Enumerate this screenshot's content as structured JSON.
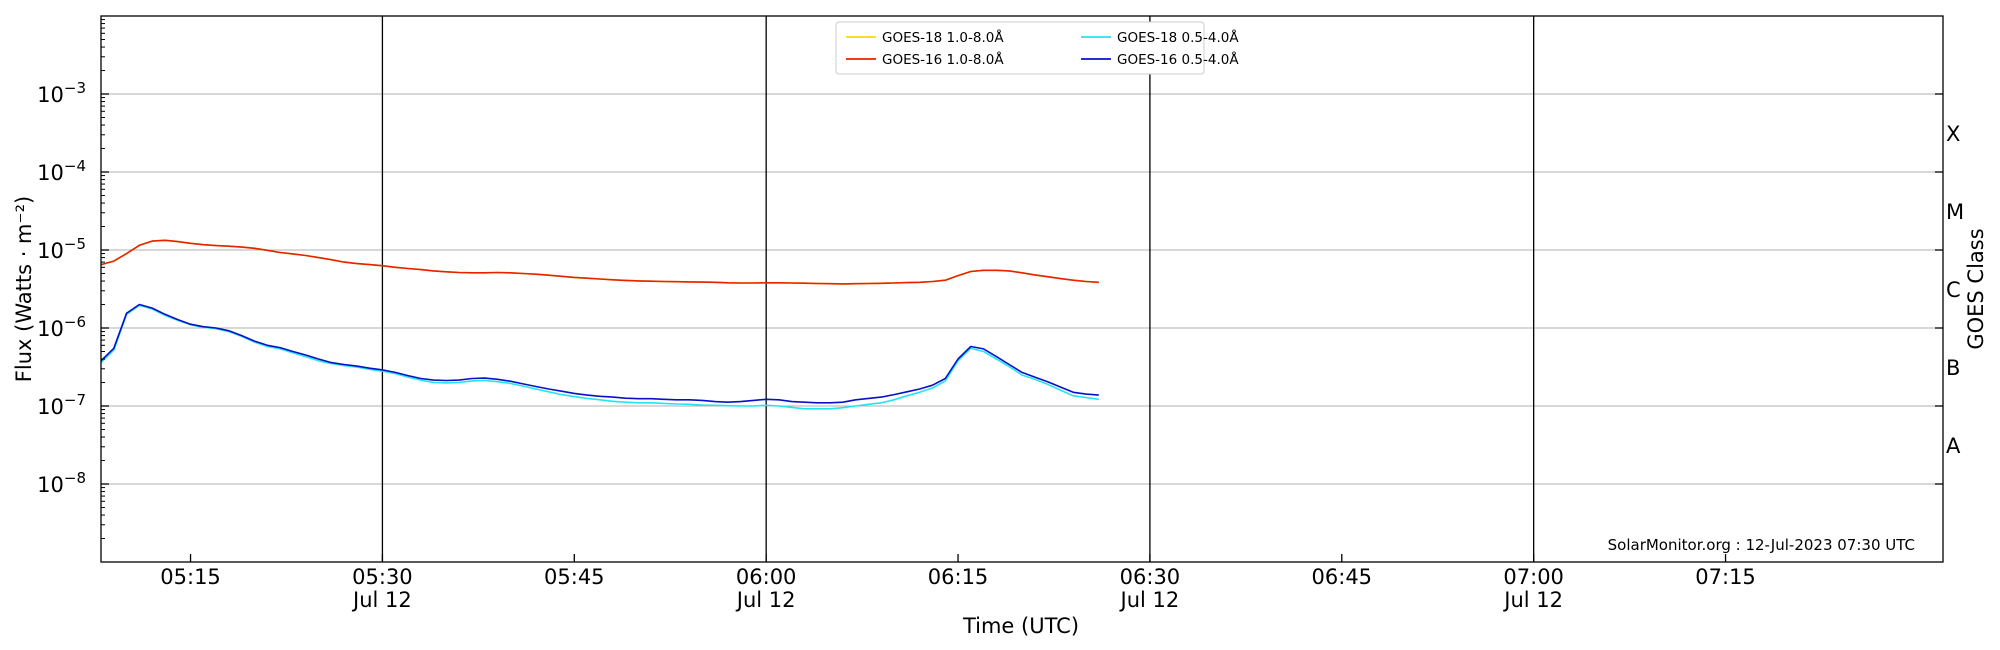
{
  "chart_data": {
    "type": "line",
    "title": "",
    "xlabel": "Time (UTC)",
    "ylabel": "Flux (Watts · m⁻²)",
    "right_axis_label": "GOES Class",
    "y_scale": "log",
    "ylim": [
      1e-09,
      0.01
    ],
    "xlim_minutes": [
      308,
      452
    ],
    "grid": "horizontal at decades",
    "legend_placement": "top-center",
    "x_ticks": [
      {
        "minute": 315,
        "time": "05:15",
        "date": ""
      },
      {
        "minute": 330,
        "time": "05:30",
        "date": "Jul 12"
      },
      {
        "minute": 345,
        "time": "05:45",
        "date": ""
      },
      {
        "minute": 360,
        "time": "06:00",
        "date": "Jul 12"
      },
      {
        "minute": 375,
        "time": "06:15",
        "date": ""
      },
      {
        "minute": 390,
        "time": "06:30",
        "date": "Jul 12"
      },
      {
        "minute": 405,
        "time": "06:45",
        "date": ""
      },
      {
        "minute": 420,
        "time": "07:00",
        "date": "Jul 12"
      },
      {
        "minute": 435,
        "time": "07:15",
        "date": ""
      }
    ],
    "day_lines_minutes": [
      330,
      360,
      390,
      420
    ],
    "y_ticks": [
      {
        "exp": -3,
        "base": "10",
        "sup": "−3"
      },
      {
        "exp": -4,
        "base": "10",
        "sup": "−4"
      },
      {
        "exp": -5,
        "base": "10",
        "sup": "−5"
      },
      {
        "exp": -6,
        "base": "10",
        "sup": "−6"
      },
      {
        "exp": -7,
        "base": "10",
        "sup": "−7"
      },
      {
        "exp": -8,
        "base": "10",
        "sup": "−8"
      }
    ],
    "goes_classes": [
      {
        "label": "X",
        "exp": -3.5
      },
      {
        "label": "M",
        "exp": -4.5
      },
      {
        "label": "C",
        "exp": -5.5
      },
      {
        "label": "B",
        "exp": -6.5
      },
      {
        "label": "A",
        "exp": -7.5
      }
    ],
    "annotation": "SolarMonitor.org : 12-Jul-2023 07:30 UTC",
    "x_times": [
      "05:08",
      "05:09",
      "05:10",
      "05:11",
      "05:12",
      "05:13",
      "05:14",
      "05:15",
      "05:16",
      "05:17",
      "05:18",
      "05:19",
      "05:20",
      "05:21",
      "05:22",
      "05:23",
      "05:24",
      "05:25",
      "05:26",
      "05:27",
      "05:28",
      "05:29",
      "05:30",
      "05:31",
      "05:32",
      "05:33",
      "05:34",
      "05:35",
      "05:36",
      "05:37",
      "05:38",
      "05:39",
      "05:40",
      "05:41",
      "05:42",
      "05:43",
      "05:44",
      "05:45",
      "05:46",
      "05:47",
      "05:48",
      "05:49",
      "05:50",
      "05:51",
      "05:52",
      "05:53",
      "05:54",
      "05:55",
      "05:56",
      "05:57",
      "05:58",
      "05:59",
      "06:00",
      "06:01",
      "06:02",
      "06:03",
      "06:04",
      "06:05",
      "06:06",
      "06:07",
      "06:08",
      "06:09",
      "06:10",
      "06:11",
      "06:12",
      "06:13",
      "06:14",
      "06:15",
      "06:16",
      "06:17",
      "06:18",
      "06:19",
      "06:20",
      "06:21",
      "06:22",
      "06:23",
      "06:24",
      "06:25",
      "06:26"
    ],
    "series": [
      {
        "name": "GOES-18 1.0-8.0Å",
        "color": "#FFD700",
        "values": [
          6.5e-06,
          7.2e-06,
          9e-06,
          1.15e-05,
          1.3e-05,
          1.33e-05,
          1.28e-05,
          1.22e-05,
          1.17e-05,
          1.14e-05,
          1.12e-05,
          1.09e-05,
          1.05e-05,
          9.9e-06,
          9.3e-06,
          8.9e-06,
          8.5e-06,
          8e-06,
          7.5e-06,
          7e-06,
          6.7e-06,
          6.5e-06,
          6.3e-06,
          6e-06,
          5.8e-06,
          5.6e-06,
          5.4e-06,
          5.25e-06,
          5.15e-06,
          5.1e-06,
          5.1e-06,
          5.15e-06,
          5.1e-06,
          5e-06,
          4.9e-06,
          4.75e-06,
          4.6e-06,
          4.45e-06,
          4.35e-06,
          4.25e-06,
          4.15e-06,
          4.08e-06,
          4.02e-06,
          3.98e-06,
          3.95e-06,
          3.92e-06,
          3.9e-06,
          3.88e-06,
          3.85e-06,
          3.8e-06,
          3.78e-06,
          3.78e-06,
          3.8e-06,
          3.8e-06,
          3.78e-06,
          3.75e-06,
          3.72e-06,
          3.7e-06,
          3.68e-06,
          3.7e-06,
          3.72e-06,
          3.74e-06,
          3.78e-06,
          3.82e-06,
          3.85e-06,
          3.95e-06,
          4.1e-06,
          4.7e-06,
          5.3e-06,
          5.5e-06,
          5.5e-06,
          5.4e-06,
          5.1e-06,
          4.8e-06,
          4.55e-06,
          4.3e-06,
          4.1e-06,
          3.95e-06,
          3.85e-06
        ]
      },
      {
        "name": "GOES-16 1.0-8.0Å",
        "color": "#E62200",
        "values": [
          6.5e-06,
          7.2e-06,
          9e-06,
          1.15e-05,
          1.3e-05,
          1.33e-05,
          1.28e-05,
          1.22e-05,
          1.17e-05,
          1.14e-05,
          1.12e-05,
          1.09e-05,
          1.05e-05,
          9.9e-06,
          9.3e-06,
          8.9e-06,
          8.5e-06,
          8e-06,
          7.5e-06,
          7e-06,
          6.7e-06,
          6.5e-06,
          6.3e-06,
          6e-06,
          5.8e-06,
          5.6e-06,
          5.4e-06,
          5.25e-06,
          5.15e-06,
          5.1e-06,
          5.1e-06,
          5.15e-06,
          5.1e-06,
          5e-06,
          4.9e-06,
          4.75e-06,
          4.6e-06,
          4.45e-06,
          4.35e-06,
          4.25e-06,
          4.15e-06,
          4.08e-06,
          4.02e-06,
          3.98e-06,
          3.95e-06,
          3.92e-06,
          3.9e-06,
          3.88e-06,
          3.85e-06,
          3.8e-06,
          3.78e-06,
          3.78e-06,
          3.8e-06,
          3.8e-06,
          3.78e-06,
          3.75e-06,
          3.72e-06,
          3.7e-06,
          3.68e-06,
          3.7e-06,
          3.72e-06,
          3.74e-06,
          3.78e-06,
          3.82e-06,
          3.85e-06,
          3.95e-06,
          4.1e-06,
          4.7e-06,
          5.3e-06,
          5.5e-06,
          5.5e-06,
          5.4e-06,
          5.1e-06,
          4.8e-06,
          4.55e-06,
          4.3e-06,
          4.1e-06,
          3.95e-06,
          3.85e-06
        ]
      },
      {
        "name": "GOES-18 0.5-4.0Å",
        "color": "#22E5F0",
        "values": [
          3.6e-07,
          5.2e-07,
          1.5e-06,
          1.95e-06,
          1.75e-06,
          1.45e-06,
          1.25e-06,
          1.1e-06,
          1.02e-06,
          9.8e-07,
          9e-07,
          7.8e-07,
          6.6e-07,
          5.8e-07,
          5.4e-07,
          4.8e-07,
          4.3e-07,
          3.8e-07,
          3.5e-07,
          3.3e-07,
          3.15e-07,
          2.95e-07,
          2.8e-07,
          2.6e-07,
          2.35e-07,
          2.15e-07,
          2e-07,
          1.98e-07,
          2e-07,
          2.1e-07,
          2.12e-07,
          2.05e-07,
          1.95e-07,
          1.8e-07,
          1.65e-07,
          1.52e-07,
          1.4e-07,
          1.32e-07,
          1.25e-07,
          1.2e-07,
          1.15e-07,
          1.12e-07,
          1.1e-07,
          1.1e-07,
          1.08e-07,
          1.06e-07,
          1.05e-07,
          1.03e-07,
          1.02e-07,
          1.01e-07,
          1e-07,
          1e-07,
          1.02e-07,
          1e-07,
          9.6e-08,
          9.2e-08,
          9.2e-08,
          9.2e-08,
          9.5e-08,
          1e-07,
          1.05e-07,
          1.1e-07,
          1.2e-07,
          1.35e-07,
          1.5e-07,
          1.7e-07,
          2.1e-07,
          3.8e-07,
          5.5e-07,
          5e-07,
          4e-07,
          3.2e-07,
          2.5e-07,
          2.2e-07,
          1.9e-07,
          1.6e-07,
          1.35e-07,
          1.28e-07,
          1.22e-07
        ]
      },
      {
        "name": "GOES-16 0.5-4.0Å",
        "color": "#0A10C8",
        "values": [
          3.8e-07,
          5.5e-07,
          1.55e-06,
          2e-06,
          1.8e-06,
          1.5e-06,
          1.28e-06,
          1.12e-06,
          1.04e-06,
          1e-06,
          9.2e-07,
          8e-07,
          6.8e-07,
          6e-07,
          5.6e-07,
          5e-07,
          4.5e-07,
          4e-07,
          3.6e-07,
          3.4e-07,
          3.25e-07,
          3.05e-07,
          2.9e-07,
          2.7e-07,
          2.45e-07,
          2.25e-07,
          2.15e-07,
          2.12e-07,
          2.15e-07,
          2.25e-07,
          2.28e-07,
          2.2e-07,
          2.08e-07,
          1.92e-07,
          1.78e-07,
          1.65e-07,
          1.55e-07,
          1.45e-07,
          1.38e-07,
          1.33e-07,
          1.3e-07,
          1.26e-07,
          1.24e-07,
          1.24e-07,
          1.22e-07,
          1.2e-07,
          1.2e-07,
          1.18e-07,
          1.14e-07,
          1.12e-07,
          1.14e-07,
          1.18e-07,
          1.22e-07,
          1.2e-07,
          1.14e-07,
          1.12e-07,
          1.1e-07,
          1.1e-07,
          1.12e-07,
          1.2e-07,
          1.25e-07,
          1.3e-07,
          1.4e-07,
          1.52e-07,
          1.65e-07,
          1.85e-07,
          2.25e-07,
          4e-07,
          5.8e-07,
          5.4e-07,
          4.3e-07,
          3.4e-07,
          2.7e-07,
          2.35e-07,
          2.05e-07,
          1.75e-07,
          1.5e-07,
          1.42e-07,
          1.38e-07
        ]
      }
    ],
    "legend_order": [
      0,
      2,
      1,
      3
    ]
  }
}
